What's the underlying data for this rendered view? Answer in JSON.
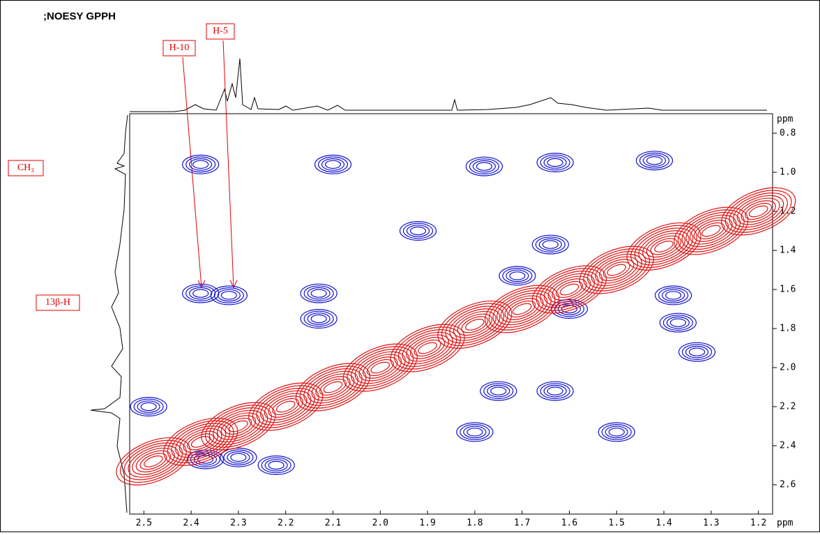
{
  "chart_data": {
    "type": "contour",
    "title": ";NOESY GPPH",
    "xlabel": "ppm",
    "ylabel": "ppm",
    "xlim": [
      2.53,
      1.17
    ],
    "ylim": [
      0.7,
      2.75
    ],
    "xticks": [
      2.5,
      2.4,
      2.3,
      2.2,
      2.1,
      {
        "value": 2,
        "label": "2.0"
      },
      1.9,
      1.8,
      1.7,
      1.6,
      1.5,
      1.4,
      1.3,
      1.2
    ],
    "yticks": [
      0.8,
      {
        "value": 1,
        "label": "1.0"
      },
      1.2,
      1.4,
      1.6,
      1.8,
      {
        "value": 2,
        "label": "2.0"
      },
      2.2,
      2.4,
      2.6
    ],
    "series": [
      {
        "color": "#1010d0",
        "x": [
          2.38,
          2.1,
          1.78,
          1.63,
          1.42,
          1.92,
          1.64,
          1.71,
          2.38,
          2.32,
          2.13,
          2.13,
          1.38,
          1.6,
          1.37,
          1.33,
          1.75,
          1.63,
          2.49,
          1.5,
          1.8,
          2.3,
          2.22,
          2.37
        ],
        "y": [
          0.96,
          0.96,
          0.97,
          0.95,
          0.94,
          1.3,
          1.37,
          1.53,
          1.62,
          1.63,
          1.62,
          1.75,
          1.63,
          1.7,
          1.77,
          1.92,
          2.12,
          2.12,
          2.2,
          2.33,
          2.33,
          2.46,
          2.5,
          2.47
        ]
      },
      {
        "color": "#e01010",
        "x": [
          2.48,
          2.38,
          2.3,
          2.2,
          2.1,
          2.0,
          1.9,
          1.8,
          1.7,
          1.6,
          1.5,
          1.4,
          1.3,
          1.2
        ],
        "y": [
          2.48,
          2.38,
          2.3,
          2.2,
          2.1,
          2.0,
          1.9,
          1.78,
          1.7,
          1.6,
          1.5,
          1.38,
          1.3,
          1.2
        ]
      }
    ],
    "annotations": [
      "H-10",
      "H-5",
      "CH₃",
      "13β-H"
    ]
  }
}
